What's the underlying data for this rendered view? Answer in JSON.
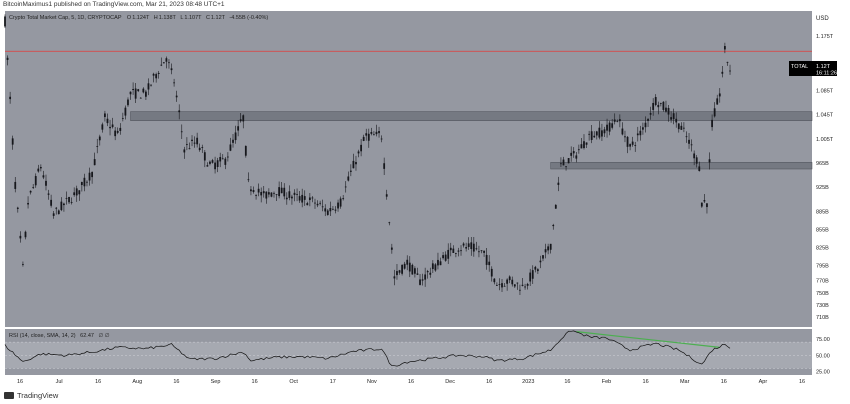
{
  "header": {
    "publisher_line": "BitcoinMaximus1 published on TradingView.com, Mar 21, 2023 08:48 UTC+1"
  },
  "legend": {
    "symbol": "Crypto Total Market Cap, 5, 1D, CRYPTOCAP",
    "open_label": "O",
    "open": "1.124T",
    "high_label": "H",
    "high": "1.138T",
    "low_label": "L",
    "low": "1.107T",
    "close_label": "C",
    "close": "1.12T",
    "change": "-4.55B (-0.40%)"
  },
  "price_scale": {
    "currency": "USD",
    "ticks": [
      "1.175T",
      "1.125T",
      "1.085T",
      "1.045T",
      "1.005T",
      "965B",
      "925B",
      "885B",
      "855B",
      "825B",
      "795B",
      "770B",
      "750B",
      "730B",
      "710B"
    ]
  },
  "price_badge": {
    "symbol": "TOTAL",
    "value": "1.12T",
    "countdown": "16:11:26"
  },
  "rsi": {
    "label": "RSI (14, close, SMA, 14, 2)",
    "value": "62.47",
    "extra": "∅ ∅",
    "ticks": [
      "75.00",
      "50.00",
      "25.00"
    ]
  },
  "time_axis": [
    "16",
    "Jul",
    "16",
    "Aug",
    "16",
    "Sep",
    "16",
    "Oct",
    "17",
    "Nov",
    "16",
    "Dec",
    "16",
    "2023",
    "16",
    "Feb",
    "16",
    "Mar",
    "16",
    "Apr",
    "16"
  ],
  "footer": {
    "brand": "TradingView"
  },
  "colors": {
    "plot_bg": "#9598a1",
    "candle": "#16171c",
    "resistance_line": "#e23b3b",
    "zone_fill": "#70737c",
    "rsi_line": "#111111",
    "rsi_trend": "#4caf50",
    "badge": "#000000"
  },
  "chart_data": {
    "type": "line",
    "title": "Crypto Total Market Cap, 5, 1D, CRYPTOCAP",
    "xlabel": "",
    "ylabel": "USD",
    "x_range": [
      "2022-06-11",
      "2023-04-22"
    ],
    "ylim_billions": [
      700,
      1210
    ],
    "resistance_billions": 1150,
    "zones_billions": [
      {
        "low": 1035,
        "high": 1050,
        "from": "2022-07-30",
        "to": "2023-04-22"
      },
      {
        "low": 955,
        "high": 966,
        "from": "2023-01-10",
        "to": "2023-04-22"
      }
    ],
    "price_points": [
      [
        "2022-06-11",
        1200
      ],
      [
        "2022-06-13",
        1070
      ],
      [
        "2022-06-15",
        930
      ],
      [
        "2022-06-18",
        790
      ],
      [
        "2022-06-20",
        900
      ],
      [
        "2022-06-25",
        960
      ],
      [
        "2022-06-30",
        880
      ],
      [
        "2022-07-05",
        900
      ],
      [
        "2022-07-10",
        920
      ],
      [
        "2022-07-15",
        950
      ],
      [
        "2022-07-20",
        1040
      ],
      [
        "2022-07-25",
        1010
      ],
      [
        "2022-07-30",
        1080
      ],
      [
        "2022-08-05",
        1080
      ],
      [
        "2022-08-10",
        1120
      ],
      [
        "2022-08-13",
        1140
      ],
      [
        "2022-08-16",
        1100
      ],
      [
        "2022-08-20",
        990
      ],
      [
        "2022-08-25",
        1000
      ],
      [
        "2022-08-30",
        960
      ],
      [
        "2022-09-05",
        970
      ],
      [
        "2022-09-12",
        1040
      ],
      [
        "2022-09-14",
        930
      ],
      [
        "2022-09-20",
        910
      ],
      [
        "2022-09-25",
        920
      ],
      [
        "2022-10-01",
        910
      ],
      [
        "2022-10-10",
        900
      ],
      [
        "2022-10-15",
        885
      ],
      [
        "2022-10-20",
        900
      ],
      [
        "2022-10-25",
        960
      ],
      [
        "2022-10-30",
        1010
      ],
      [
        "2022-11-05",
        1010
      ],
      [
        "2022-11-08",
        870
      ],
      [
        "2022-11-10",
        775
      ],
      [
        "2022-11-15",
        800
      ],
      [
        "2022-11-20",
        770
      ],
      [
        "2022-11-25",
        790
      ],
      [
        "2022-12-01",
        815
      ],
      [
        "2022-12-05",
        825
      ],
      [
        "2022-12-10",
        825
      ],
      [
        "2022-12-15",
        815
      ],
      [
        "2022-12-20",
        765
      ],
      [
        "2022-12-25",
        770
      ],
      [
        "2022-12-30",
        760
      ],
      [
        "2023-01-05",
        790
      ],
      [
        "2023-01-10",
        830
      ],
      [
        "2023-01-14",
        960
      ],
      [
        "2023-01-20",
        980
      ],
      [
        "2023-01-25",
        1010
      ],
      [
        "2023-02-01",
        1020
      ],
      [
        "2023-02-05",
        1040
      ],
      [
        "2023-02-10",
        990
      ],
      [
        "2023-02-15",
        1020
      ],
      [
        "2023-02-20",
        1070
      ],
      [
        "2023-02-25",
        1050
      ],
      [
        "2023-03-01",
        1030
      ],
      [
        "2023-03-05",
        1000
      ],
      [
        "2023-03-09",
        960
      ],
      [
        "2023-03-10",
        900
      ],
      [
        "2023-03-12",
        900
      ],
      [
        "2023-03-14",
        1030
      ],
      [
        "2023-03-17",
        1080
      ],
      [
        "2023-03-19",
        1150
      ],
      [
        "2023-03-21",
        1120
      ]
    ],
    "rsi_points": [
      [
        "2022-06-11",
        65
      ],
      [
        "2022-06-18",
        40
      ],
      [
        "2022-06-25",
        52
      ],
      [
        "2022-07-05",
        50
      ],
      [
        "2022-07-15",
        55
      ],
      [
        "2022-07-25",
        62
      ],
      [
        "2022-08-05",
        60
      ],
      [
        "2022-08-15",
        66
      ],
      [
        "2022-08-22",
        44
      ],
      [
        "2022-09-01",
        45
      ],
      [
        "2022-09-12",
        55
      ],
      [
        "2022-09-15",
        42
      ],
      [
        "2022-09-25",
        47
      ],
      [
        "2022-10-05",
        48
      ],
      [
        "2022-10-15",
        45
      ],
      [
        "2022-10-25",
        56
      ],
      [
        "2022-11-05",
        60
      ],
      [
        "2022-11-09",
        33
      ],
      [
        "2022-11-15",
        40
      ],
      [
        "2022-11-25",
        45
      ],
      [
        "2022-12-05",
        50
      ],
      [
        "2022-12-15",
        48
      ],
      [
        "2022-12-20",
        42
      ],
      [
        "2022-12-30",
        45
      ],
      [
        "2023-01-10",
        58
      ],
      [
        "2023-01-14",
        75
      ],
      [
        "2023-01-18",
        88
      ],
      [
        "2023-01-25",
        78
      ],
      [
        "2023-02-01",
        76
      ],
      [
        "2023-02-10",
        58
      ],
      [
        "2023-02-20",
        68
      ],
      [
        "2023-03-01",
        58
      ],
      [
        "2023-03-10",
        36
      ],
      [
        "2023-03-14",
        58
      ],
      [
        "2023-03-19",
        67
      ],
      [
        "2023-03-21",
        62.47
      ]
    ],
    "rsi_trendline": [
      [
        "2023-01-20",
        86
      ],
      [
        "2023-03-17",
        62
      ]
    ],
    "rsi_ylim": [
      20,
      90
    ],
    "rsi_levels": [
      70,
      50,
      30
    ],
    "grid": false,
    "legend_position": "top-left"
  }
}
